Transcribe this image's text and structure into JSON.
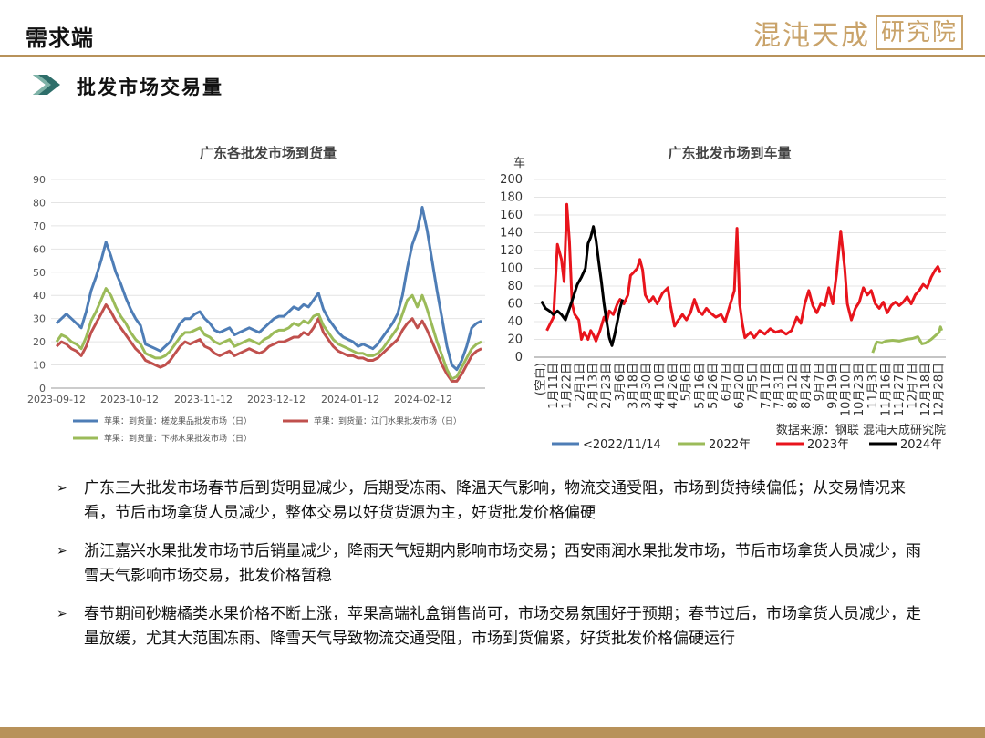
{
  "header": {
    "title": "需求端",
    "logo_text": "混沌天成",
    "logo_seal": "研究院"
  },
  "section": {
    "title": "批发市场交易量"
  },
  "colors": {
    "accent_gold": "#b8925a",
    "blue": "#4e7db6",
    "red": "#c0504d",
    "green": "#9bbb59",
    "red_bright": "#e8141c",
    "black": "#000000"
  },
  "chart_data": [
    {
      "type": "line",
      "title": "广东各批发市场到货量",
      "x_ticks": [
        "2023-09-12",
        "2023-10-12",
        "2023-11-12",
        "2023-12-12",
        "2024-01-12",
        "2024-02-12"
      ],
      "ylim": [
        0,
        90
      ],
      "y_ticks": [
        "0",
        "10",
        "20",
        "30",
        "40",
        "50",
        "60",
        "70",
        "80",
        "90"
      ],
      "legend_position": "bottom",
      "series": [
        {
          "name": "苹果：到货量：槎龙果品批发市场（日）",
          "color": "#4e7db6",
          "values": [
            28,
            30,
            32,
            30,
            28,
            26,
            33,
            42,
            48,
            55,
            63,
            57,
            50,
            45,
            39,
            34,
            30,
            27,
            19,
            18,
            17,
            16,
            18,
            20,
            24,
            28,
            30,
            30,
            32,
            33,
            30,
            28,
            25,
            24,
            25,
            26,
            23,
            24,
            25,
            26,
            25,
            24,
            26,
            28,
            30,
            31,
            31,
            33,
            35,
            34,
            36,
            35,
            38,
            41,
            34,
            30,
            27,
            24,
            22,
            21,
            20,
            18,
            19,
            18,
            17,
            19,
            22,
            25,
            28,
            32,
            40,
            52,
            62,
            68,
            78,
            68,
            55,
            42,
            30,
            18,
            10,
            8,
            12,
            18,
            26,
            28,
            29
          ]
        },
        {
          "name": "苹果：到货量：江门水果批发市场（日）",
          "color": "#c0504d",
          "values": [
            18,
            20,
            19,
            17,
            16,
            14,
            18,
            24,
            28,
            32,
            36,
            33,
            29,
            26,
            23,
            20,
            17,
            15,
            12,
            11,
            10,
            9,
            10,
            12,
            15,
            18,
            20,
            19,
            20,
            21,
            18,
            17,
            15,
            14,
            15,
            16,
            14,
            15,
            16,
            17,
            16,
            15,
            16,
            18,
            19,
            20,
            20,
            21,
            22,
            22,
            24,
            23,
            26,
            30,
            24,
            21,
            18,
            16,
            15,
            14,
            14,
            13,
            13,
            12,
            12,
            13,
            15,
            17,
            19,
            21,
            25,
            28,
            30,
            26,
            29,
            25,
            20,
            15,
            10,
            6,
            3,
            3,
            6,
            10,
            14,
            16,
            17
          ]
        },
        {
          "name": "苹果：到货量：下梆水果批发市场（日）",
          "color": "#9bbb59",
          "values": [
            20,
            23,
            22,
            20,
            19,
            17,
            22,
            29,
            33,
            38,
            43,
            40,
            35,
            31,
            28,
            24,
            21,
            19,
            15,
            14,
            13,
            13,
            14,
            16,
            19,
            22,
            24,
            24,
            25,
            26,
            23,
            22,
            20,
            19,
            20,
            21,
            18,
            19,
            20,
            21,
            20,
            19,
            21,
            22,
            24,
            25,
            25,
            26,
            28,
            27,
            29,
            28,
            31,
            32,
            27,
            24,
            21,
            19,
            18,
            17,
            16,
            15,
            15,
            14,
            14,
            15,
            17,
            20,
            23,
            26,
            32,
            38,
            40,
            35,
            40,
            34,
            27,
            20,
            14,
            8,
            4,
            5,
            9,
            13,
            17,
            19,
            20
          ]
        }
      ]
    },
    {
      "type": "line",
      "title": "广东批发市场到车量",
      "y_unit": "车",
      "ylim": [
        0,
        200
      ],
      "y_ticks": [
        "0",
        "20",
        "40",
        "60",
        "80",
        "100",
        "120",
        "140",
        "160",
        "180",
        "200"
      ],
      "x_ticks": [
        "(空白)",
        "1月11日",
        "1月22日",
        "2月1日",
        "2月13日",
        "2月23日",
        "3月6日",
        "3月18日",
        "3月30日",
        "4月10日",
        "4月26日",
        "5月6日",
        "5月16日",
        "5月26日",
        "6月7日",
        "6月20日",
        "7月5日",
        "7月17日",
        "7月31日",
        "8月12日",
        "8月24日",
        "9月7日",
        "9月19日",
        "10月10日",
        "10月23日",
        "11月3日",
        "11月16日",
        "11月27日",
        "12月7日",
        "12月18日",
        "12月28日"
      ],
      "source": "数据来源：钢联  混沌天成研究院",
      "legend_position": "bottom",
      "series": [
        {
          "name": "<2022/11/14",
          "color": "#4e7db6",
          "values": []
        },
        {
          "name": "2022年",
          "color": "#9bbb59",
          "points": [
            [
              25.0,
              5
            ],
            [
              25.3,
              17
            ],
            [
              25.7,
              16
            ],
            [
              26.0,
              18
            ],
            [
              26.5,
              19
            ],
            [
              27.0,
              18
            ],
            [
              27.5,
              20
            ],
            [
              28.0,
              21
            ],
            [
              28.4,
              23
            ],
            [
              28.7,
              15
            ],
            [
              29.0,
              16
            ],
            [
              29.4,
              20
            ],
            [
              29.7,
              24
            ],
            [
              30.0,
              28
            ],
            [
              30.1,
              34
            ],
            [
              30.2,
              30
            ]
          ]
        },
        {
          "name": "2023年",
          "color": "#e8141c",
          "points": [
            [
              0.5,
              30
            ],
            [
              1.0,
              45
            ],
            [
              1.3,
              127
            ],
            [
              1.6,
              110
            ],
            [
              1.8,
              85
            ],
            [
              2.0,
              172
            ],
            [
              2.2,
              130
            ],
            [
              2.4,
              60
            ],
            [
              2.6,
              48
            ],
            [
              2.9,
              42
            ],
            [
              3.1,
              20
            ],
            [
              3.3,
              28
            ],
            [
              3.6,
              20
            ],
            [
              3.8,
              30
            ],
            [
              4.0,
              25
            ],
            [
              4.2,
              18
            ],
            [
              4.5,
              30
            ],
            [
              4.8,
              45
            ],
            [
              5.0,
              40
            ],
            [
              5.2,
              52
            ],
            [
              5.5,
              48
            ],
            [
              5.8,
              60
            ],
            [
              6.0,
              65
            ],
            [
              6.3,
              60
            ],
            [
              6.6,
              70
            ],
            [
              6.8,
              92
            ],
            [
              7.0,
              95
            ],
            [
              7.3,
              100
            ],
            [
              7.5,
              110
            ],
            [
              7.7,
              98
            ],
            [
              7.9,
              70
            ],
            [
              8.2,
              62
            ],
            [
              8.5,
              68
            ],
            [
              8.8,
              60
            ],
            [
              9.2,
              72
            ],
            [
              9.6,
              78
            ],
            [
              9.8,
              58
            ],
            [
              10.1,
              35
            ],
            [
              10.4,
              42
            ],
            [
              10.7,
              48
            ],
            [
              11.0,
              42
            ],
            [
              11.3,
              50
            ],
            [
              11.6,
              65
            ],
            [
              11.9,
              52
            ],
            [
              12.2,
              48
            ],
            [
              12.5,
              55
            ],
            [
              12.8,
              50
            ],
            [
              13.2,
              45
            ],
            [
              13.6,
              48
            ],
            [
              13.9,
              40
            ],
            [
              14.3,
              60
            ],
            [
              14.6,
              75
            ],
            [
              14.8,
              145
            ],
            [
              15.0,
              60
            ],
            [
              15.2,
              38
            ],
            [
              15.4,
              22
            ],
            [
              15.8,
              28
            ],
            [
              16.1,
              22
            ],
            [
              16.5,
              30
            ],
            [
              16.9,
              26
            ],
            [
              17.3,
              32
            ],
            [
              17.7,
              28
            ],
            [
              18.1,
              30
            ],
            [
              18.5,
              26
            ],
            [
              18.9,
              30
            ],
            [
              19.3,
              45
            ],
            [
              19.6,
              38
            ],
            [
              19.9,
              60
            ],
            [
              20.2,
              75
            ],
            [
              20.5,
              58
            ],
            [
              20.8,
              50
            ],
            [
              21.1,
              60
            ],
            [
              21.4,
              58
            ],
            [
              21.7,
              78
            ],
            [
              22.0,
              60
            ],
            [
              22.3,
              95
            ],
            [
              22.6,
              142
            ],
            [
              22.9,
              100
            ],
            [
              23.1,
              60
            ],
            [
              23.4,
              42
            ],
            [
              23.7,
              55
            ],
            [
              24.0,
              62
            ],
            [
              24.3,
              78
            ],
            [
              24.6,
              70
            ],
            [
              24.9,
              75
            ],
            [
              25.2,
              60
            ],
            [
              25.5,
              55
            ],
            [
              25.8,
              62
            ],
            [
              26.1,
              50
            ],
            [
              26.4,
              58
            ],
            [
              26.7,
              62
            ],
            [
              27.0,
              58
            ],
            [
              27.3,
              62
            ],
            [
              27.6,
              68
            ],
            [
              27.9,
              60
            ],
            [
              28.2,
              70
            ],
            [
              28.5,
              75
            ],
            [
              28.8,
              82
            ],
            [
              29.1,
              78
            ],
            [
              29.4,
              90
            ],
            [
              29.7,
              98
            ],
            [
              29.9,
              102
            ],
            [
              30.1,
              95
            ]
          ]
        },
        {
          "name": "2024年",
          "color": "#000000",
          "points": [
            [
              0.1,
              63
            ],
            [
              0.4,
              55
            ],
            [
              0.7,
              52
            ],
            [
              1.0,
              48
            ],
            [
              1.3,
              52
            ],
            [
              1.6,
              48
            ],
            [
              1.9,
              42
            ],
            [
              2.2,
              55
            ],
            [
              2.5,
              68
            ],
            [
              2.8,
              82
            ],
            [
              3.1,
              90
            ],
            [
              3.4,
              100
            ],
            [
              3.6,
              128
            ],
            [
              3.8,
              135
            ],
            [
              4.0,
              147
            ],
            [
              4.2,
              132
            ],
            [
              4.4,
              108
            ],
            [
              4.6,
              85
            ],
            [
              4.8,
              60
            ],
            [
              5.0,
              40
            ],
            [
              5.2,
              22
            ],
            [
              5.4,
              13
            ],
            [
              5.6,
              25
            ],
            [
              5.8,
              40
            ],
            [
              6.0,
              55
            ],
            [
              6.2,
              65
            ]
          ]
        }
      ]
    }
  ],
  "bullets": [
    "广东三大批发市场春节后到货明显减少，后期受冻雨、降温天气影响，物流交通受阻，市场到货持续偏低；从交易情况来看，节后市场拿货人员减少，整体交易以好货货源为主，好货批发价格偏硬",
    "浙江嘉兴水果批发市场节后销量减少，降雨天气短期内影响市场交易；西安雨润水果批发市场，节后市场拿货人员减少，雨雪天气影响市场交易，批发价格暂稳",
    "春节期间砂糖橘类水果价格不断上涨，苹果高端礼盒销售尚可，市场交易氛围好于预期；春节过后，市场拿货人员减少，走量放缓，尤其大范围冻雨、降雪天气导致物流交通受阻，市场到货偏紧，好货批发价格偏硬运行"
  ],
  "bullet_marker": "➢"
}
